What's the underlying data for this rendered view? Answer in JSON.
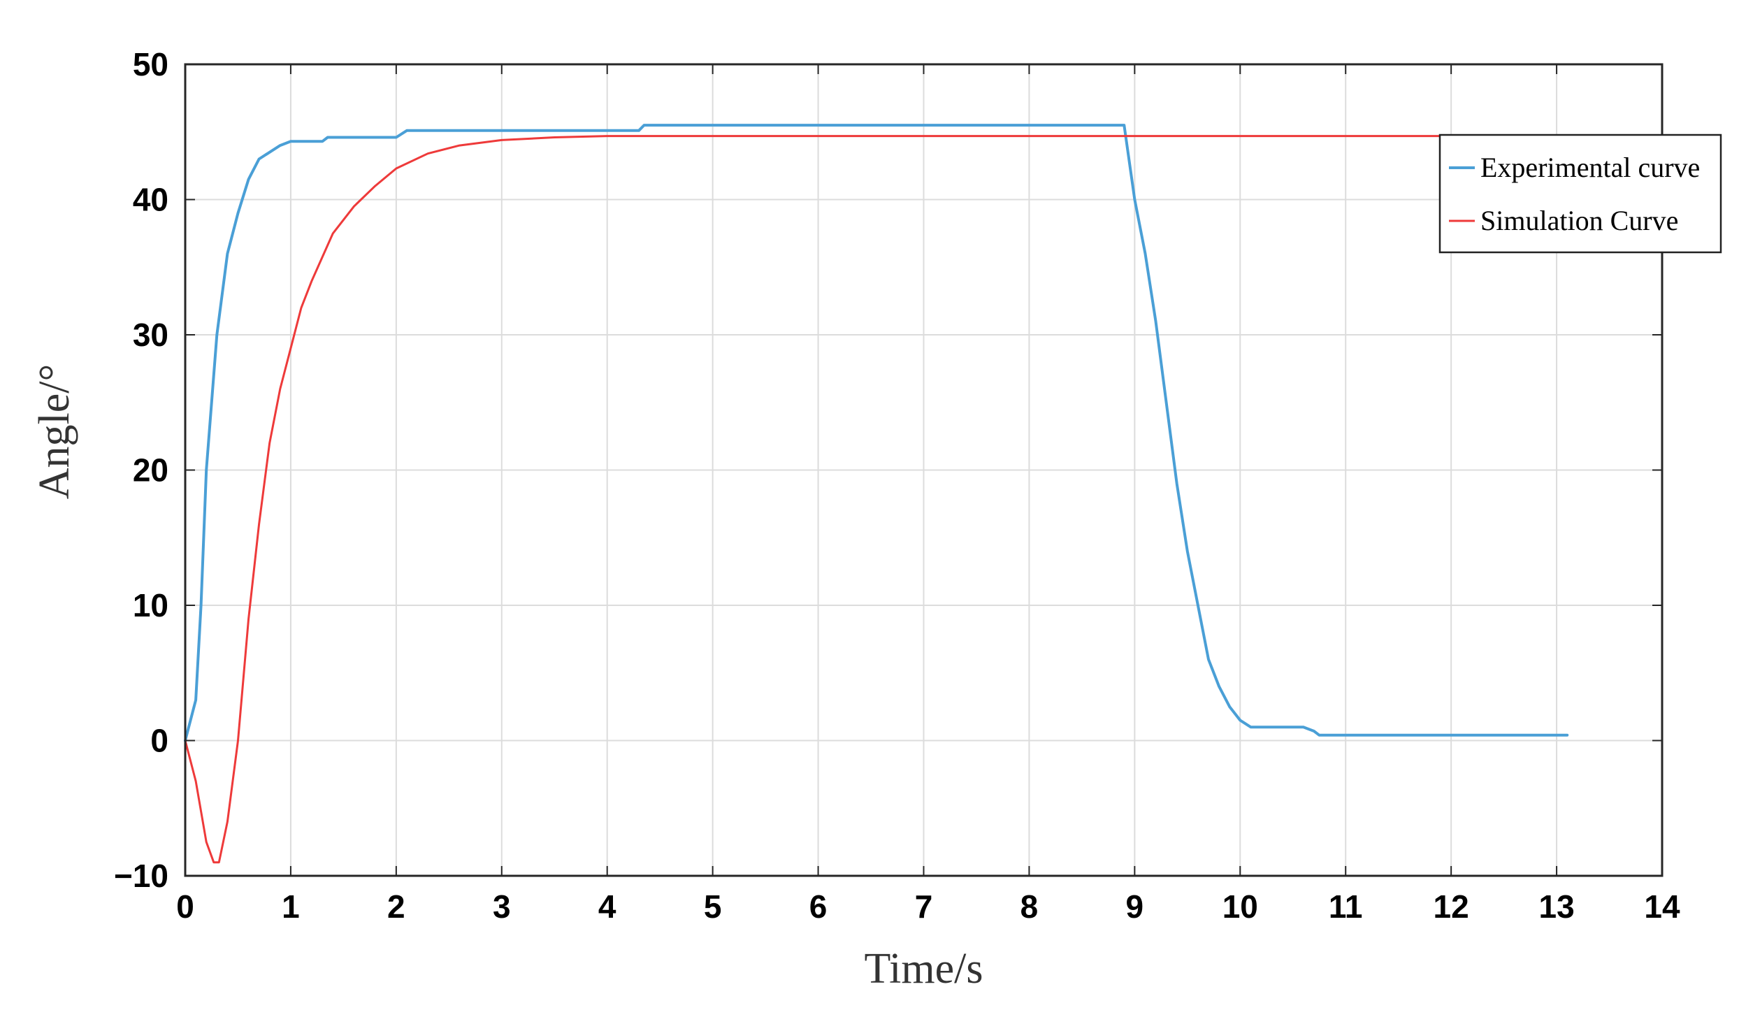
{
  "chart_data": {
    "type": "line",
    "xlabel": "Time/s",
    "ylabel": "Angle/°",
    "xlim": [
      0,
      14
    ],
    "ylim": [
      -10,
      50
    ],
    "xticks": [
      0,
      1,
      2,
      3,
      4,
      5,
      6,
      7,
      8,
      9,
      10,
      11,
      12,
      13,
      14
    ],
    "yticks": [
      -10,
      0,
      10,
      20,
      30,
      40,
      50
    ],
    "grid": true,
    "legend_position": "top-right",
    "series": [
      {
        "name": "Experimental curve",
        "color": "#4a9fd6",
        "points": [
          [
            0,
            0
          ],
          [
            0.1,
            3
          ],
          [
            0.15,
            10
          ],
          [
            0.2,
            20
          ],
          [
            0.3,
            30
          ],
          [
            0.4,
            36
          ],
          [
            0.5,
            39
          ],
          [
            0.6,
            41.5
          ],
          [
            0.7,
            43
          ],
          [
            0.8,
            43.5
          ],
          [
            0.9,
            44
          ],
          [
            1.0,
            44.3
          ],
          [
            1.3,
            44.3
          ],
          [
            1.35,
            44.6
          ],
          [
            2.0,
            44.6
          ],
          [
            2.1,
            45.1
          ],
          [
            4.3,
            45.1
          ],
          [
            4.35,
            45.5
          ],
          [
            8.9,
            45.5
          ],
          [
            9.0,
            40
          ],
          [
            9.1,
            36
          ],
          [
            9.2,
            31
          ],
          [
            9.3,
            25
          ],
          [
            9.4,
            19
          ],
          [
            9.5,
            14
          ],
          [
            9.6,
            10
          ],
          [
            9.7,
            6
          ],
          [
            9.8,
            4
          ],
          [
            9.9,
            2.5
          ],
          [
            10.0,
            1.5
          ],
          [
            10.1,
            1.0
          ],
          [
            10.6,
            1.0
          ],
          [
            10.7,
            0.7
          ],
          [
            10.75,
            0.4
          ],
          [
            13.1,
            0.4
          ]
        ]
      },
      {
        "name": "Simulation Curve",
        "color": "#ee3a3a",
        "points": [
          [
            0,
            0
          ],
          [
            0.1,
            -3
          ],
          [
            0.2,
            -7.5
          ],
          [
            0.27,
            -9
          ],
          [
            0.32,
            -9
          ],
          [
            0.4,
            -6
          ],
          [
            0.5,
            0
          ],
          [
            0.6,
            9
          ],
          [
            0.7,
            16
          ],
          [
            0.8,
            22
          ],
          [
            0.9,
            26
          ],
          [
            1.0,
            29
          ],
          [
            1.1,
            32
          ],
          [
            1.2,
            34
          ],
          [
            1.4,
            37.5
          ],
          [
            1.6,
            39.5
          ],
          [
            1.8,
            41
          ],
          [
            2.0,
            42.3
          ],
          [
            2.3,
            43.4
          ],
          [
            2.6,
            44
          ],
          [
            3.0,
            44.4
          ],
          [
            3.5,
            44.6
          ],
          [
            4.0,
            44.7
          ],
          [
            14,
            44.7
          ]
        ]
      }
    ]
  }
}
